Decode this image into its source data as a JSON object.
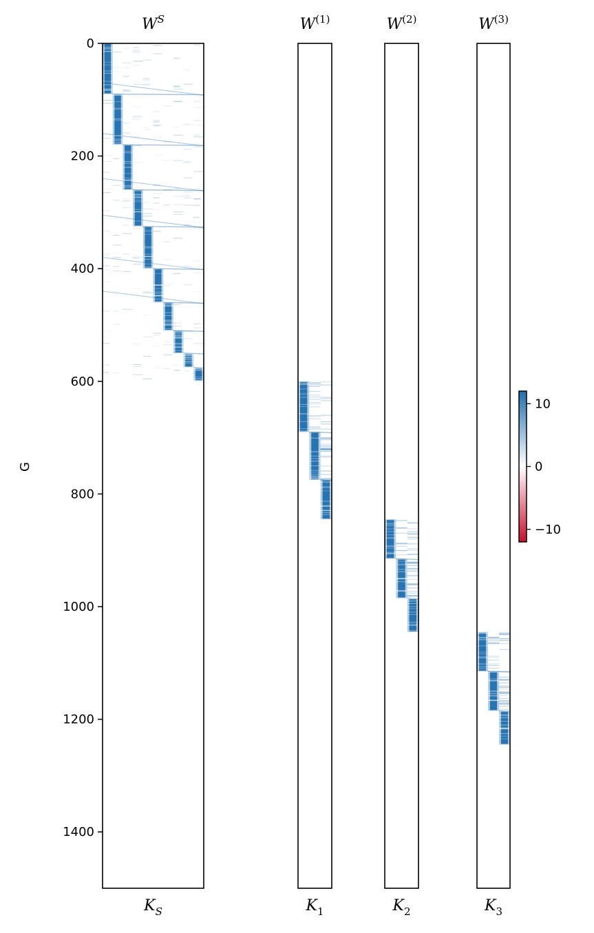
{
  "chart_data": {
    "type": "heatmap",
    "ylabel": "G",
    "ylim": [
      0,
      1500
    ],
    "yticks": [
      0,
      200,
      400,
      600,
      800,
      1000,
      1200,
      1400
    ],
    "colorbar": {
      "colormap": "RdBu",
      "vmin": -12,
      "vmax": 12,
      "ticks": [
        10,
        0,
        -10
      ],
      "tick_labels": [
        "10",
        "0",
        "−10"
      ],
      "color_negative": "#c8102e",
      "color_zero": "#ffffff",
      "color_positive": "#1f6fae"
    },
    "panels": [
      {
        "id": "shared",
        "title": "W",
        "title_sup": "S",
        "xlabel": "K",
        "xlabel_sub": "S",
        "columns": 10,
        "blocks": [
          [
            0,
            90
          ],
          [
            90,
            180
          ],
          [
            180,
            260
          ],
          [
            260,
            325
          ],
          [
            325,
            400
          ],
          [
            400,
            460
          ],
          [
            460,
            510
          ],
          [
            510,
            550
          ],
          [
            550,
            575
          ],
          [
            575,
            600
          ]
        ]
      },
      {
        "id": "specific-1",
        "title": "W",
        "title_sup": "(1)",
        "xlabel": "K",
        "xlabel_sub": "1",
        "columns": 3,
        "blocks": [
          [
            600,
            690
          ],
          [
            690,
            775
          ],
          [
            775,
            845
          ]
        ]
      },
      {
        "id": "specific-2",
        "title": "W",
        "title_sup": "(2)",
        "xlabel": "K",
        "xlabel_sub": "2",
        "columns": 3,
        "blocks": [
          [
            845,
            915
          ],
          [
            915,
            985
          ],
          [
            985,
            1045
          ]
        ]
      },
      {
        "id": "specific-3",
        "title": "W",
        "title_sup": "(3)",
        "xlabel": "K",
        "xlabel_sub": "3",
        "columns": 3,
        "blocks": [
          [
            1045,
            1115
          ],
          [
            1115,
            1185
          ],
          [
            1185,
            1245
          ]
        ]
      }
    ]
  }
}
